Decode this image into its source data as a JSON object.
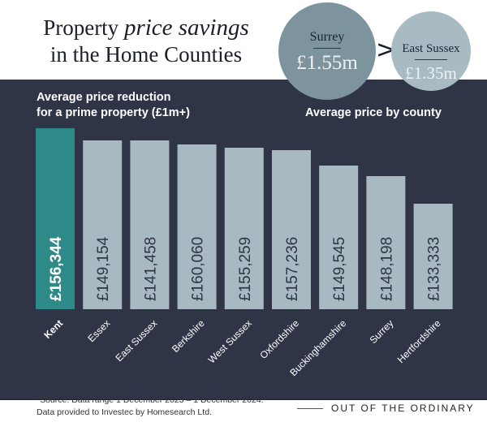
{
  "title": {
    "before": "Property ",
    "italic": "price savings",
    "line2": "in the Home Counties"
  },
  "circles": [
    {
      "county": "Surrey",
      "value": "£1.55m"
    },
    {
      "county": "East Sussex",
      "value": "£1.35m"
    }
  ],
  "arrow": ">",
  "circles_caption": "Average price by county",
  "chart_data": {
    "type": "bar",
    "title": "Average price reduction for a prime property (£1m+)",
    "title_lines": [
      "Average price reduction",
      "for a prime property (£1m+)"
    ],
    "categories": [
      "Kent",
      "Essex",
      "East Sussex",
      "Berkshire",
      "West Sussex",
      "Oxfordshire",
      "Buckinghamshire",
      "Surrey",
      "Hertfordshire"
    ],
    "values": [
      156344,
      149154,
      141458,
      160060,
      155259,
      157236,
      149545,
      148198,
      133333
    ],
    "labels": [
      "£156,344",
      "£149,154",
      "£141,458",
      "£160,060",
      "£155,259",
      "£157,236",
      "£149,545",
      "£148,198",
      "£133,333"
    ],
    "highlight": "Kent",
    "colors": {
      "highlight": "#2e8a89",
      "default": "#a8b9c2",
      "background": "#2f3447"
    },
    "grid": false
  },
  "footer": {
    "source_line1": "*Source: Data range 1 December 2023 – 1 December 2024.",
    "source_line2": "Data provided to Investec by Homesearch Ltd.",
    "brand": "OUT OF THE ORDINARY"
  }
}
